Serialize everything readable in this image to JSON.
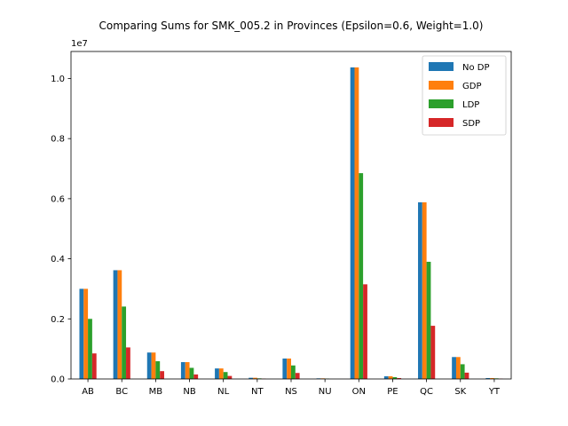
{
  "chart_data": {
    "type": "bar",
    "title": "Comparing Sums for SMK_005.2 in Provinces (Epsilon=0.6, Weight=1.0)",
    "xlabel": "",
    "ylabel": "",
    "y_scale_label": "1e7",
    "y_multiplier": 10000000,
    "ylim": [
      0,
      1.09
    ],
    "y_ticks": [
      0.0,
      0.2,
      0.4,
      0.6,
      0.8,
      1.0
    ],
    "y_tick_labels": [
      "0.0",
      "0.2",
      "0.4",
      "0.6",
      "0.8",
      "1.0"
    ],
    "grid": false,
    "legend_position": "top-right",
    "categories": [
      "AB",
      "BC",
      "MB",
      "NB",
      "NL",
      "NT",
      "NS",
      "NU",
      "ON",
      "PE",
      "QC",
      "SK",
      "YT"
    ],
    "series": [
      {
        "name": "No DP",
        "color": "#1f77b4",
        "values": [
          0.3,
          0.362,
          0.088,
          0.056,
          0.035,
          0.004,
          0.068,
          0.002,
          1.037,
          0.009,
          0.588,
          0.073,
          0.003
        ]
      },
      {
        "name": "GDP",
        "color": "#ff7f0e",
        "values": [
          0.3,
          0.362,
          0.088,
          0.056,
          0.035,
          0.004,
          0.068,
          0.002,
          1.037,
          0.009,
          0.588,
          0.073,
          0.003
        ]
      },
      {
        "name": "LDP",
        "color": "#2ca02c",
        "values": [
          0.2,
          0.241,
          0.059,
          0.037,
          0.023,
          0.002,
          0.045,
          0.001,
          0.685,
          0.006,
          0.39,
          0.049,
          0.002
        ]
      },
      {
        "name": "SDP",
        "color": "#d62728",
        "values": [
          0.085,
          0.105,
          0.026,
          0.015,
          0.01,
          0.001,
          0.02,
          0.0,
          0.315,
          0.003,
          0.177,
          0.021,
          0.001
        ]
      }
    ]
  }
}
